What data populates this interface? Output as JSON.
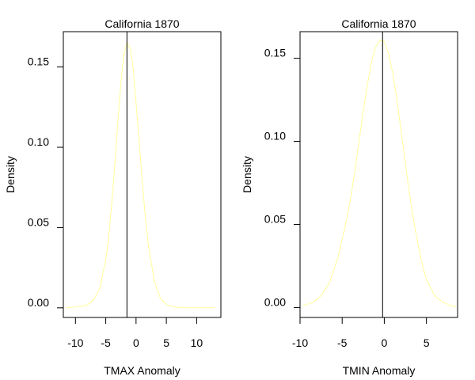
{
  "chart_data": [
    {
      "type": "line",
      "title": "California 1870",
      "xlabel": "TMAX Anomaly",
      "ylabel": "Density",
      "xlim": [
        -12,
        14
      ],
      "ylim": [
        -0.006,
        0.172
      ],
      "xticks": [
        -10,
        -5,
        0,
        5,
        10
      ],
      "xtick_labels": [
        "-10",
        "-5",
        "0",
        "5",
        "10"
      ],
      "yticks": [
        0.0,
        0.05,
        0.1,
        0.15
      ],
      "ytick_labels": [
        "0.00",
        "0.05",
        "0.10",
        "0.15"
      ],
      "grid": false,
      "series": [
        {
          "color": "#ffff99",
          "x": [
            -11.5,
            -10,
            -9,
            -8,
            -7,
            -6,
            -5,
            -4.5,
            -4,
            -3.5,
            -3,
            -2.5,
            -2,
            -1.5,
            -1,
            -0.5,
            0,
            0.5,
            1,
            1.5,
            2,
            3,
            4,
            5,
            6,
            7,
            8,
            10,
            13
          ],
          "y": [
            0.0,
            0.0005,
            0.001,
            0.002,
            0.005,
            0.012,
            0.03,
            0.045,
            0.065,
            0.09,
            0.116,
            0.14,
            0.158,
            0.165,
            0.162,
            0.15,
            0.128,
            0.104,
            0.08,
            0.058,
            0.04,
            0.017,
            0.006,
            0.002,
            0.0007,
            0.0002,
            0.0,
            0.0,
            0.0
          ]
        }
      ],
      "vline": -1.5,
      "vline_color": "#000000"
    },
    {
      "type": "line",
      "title": "California 1870",
      "xlabel": "TMIN Anomaly",
      "ylabel": "Density",
      "xlim": [
        -10,
        8.7
      ],
      "ylim": [
        -0.006,
        0.166
      ],
      "xticks": [
        -10,
        -5,
        0,
        5
      ],
      "xtick_labels": [
        "-10",
        "-5",
        "0",
        "5"
      ],
      "yticks": [
        0.0,
        0.05,
        0.1,
        0.15
      ],
      "ytick_labels": [
        "0.00",
        "0.05",
        "0.10",
        "0.15"
      ],
      "grid": false,
      "series": [
        {
          "color": "#ffff99",
          "x": [
            -9.7,
            -8.5,
            -7.5,
            -6.5,
            -5.5,
            -4.5,
            -4,
            -3.5,
            -3,
            -2.5,
            -2,
            -1.5,
            -1,
            -0.5,
            0,
            0.5,
            1,
            1.5,
            2,
            2.5,
            3,
            3.5,
            4,
            4.5,
            5,
            6,
            7,
            8,
            8.5
          ],
          "y": [
            0.001,
            0.003,
            0.007,
            0.015,
            0.03,
            0.052,
            0.066,
            0.082,
            0.1,
            0.118,
            0.134,
            0.148,
            0.157,
            0.161,
            0.16,
            0.153,
            0.141,
            0.125,
            0.106,
            0.087,
            0.068,
            0.052,
            0.038,
            0.026,
            0.017,
            0.007,
            0.003,
            0.001,
            0.0005
          ]
        }
      ],
      "vline": -0.2,
      "vline_color": "#000000"
    }
  ]
}
